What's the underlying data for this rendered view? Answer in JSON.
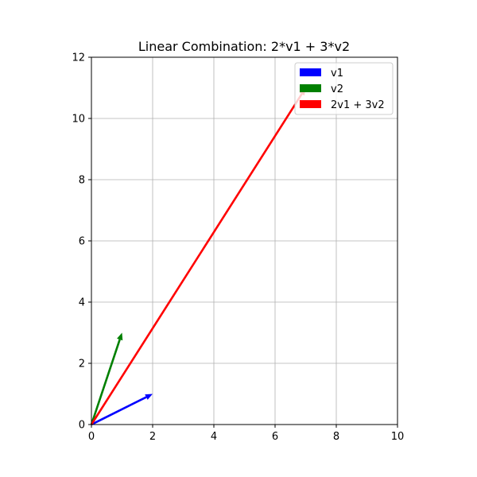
{
  "chart_data": {
    "type": "vector",
    "title": "Linear Combination: 2*v1 + 3*v2",
    "xlabel": "",
    "ylabel": "",
    "xlim": [
      0,
      10
    ],
    "ylim": [
      0,
      12
    ],
    "xticks": [
      0,
      2,
      4,
      6,
      8,
      10
    ],
    "yticks": [
      0,
      2,
      4,
      6,
      8,
      10,
      12
    ],
    "grid": true,
    "legend_position": "top-right",
    "series": [
      {
        "name": "v1",
        "start": [
          0,
          0
        ],
        "end": [
          2,
          1
        ],
        "color": "#0000ff"
      },
      {
        "name": "v2",
        "start": [
          0,
          0
        ],
        "end": [
          1,
          3
        ],
        "color": "#008000"
      },
      {
        "name": "2v1 + 3v2",
        "start": [
          0,
          0
        ],
        "end": [
          7,
          11
        ],
        "color": "#ff0000"
      }
    ]
  }
}
